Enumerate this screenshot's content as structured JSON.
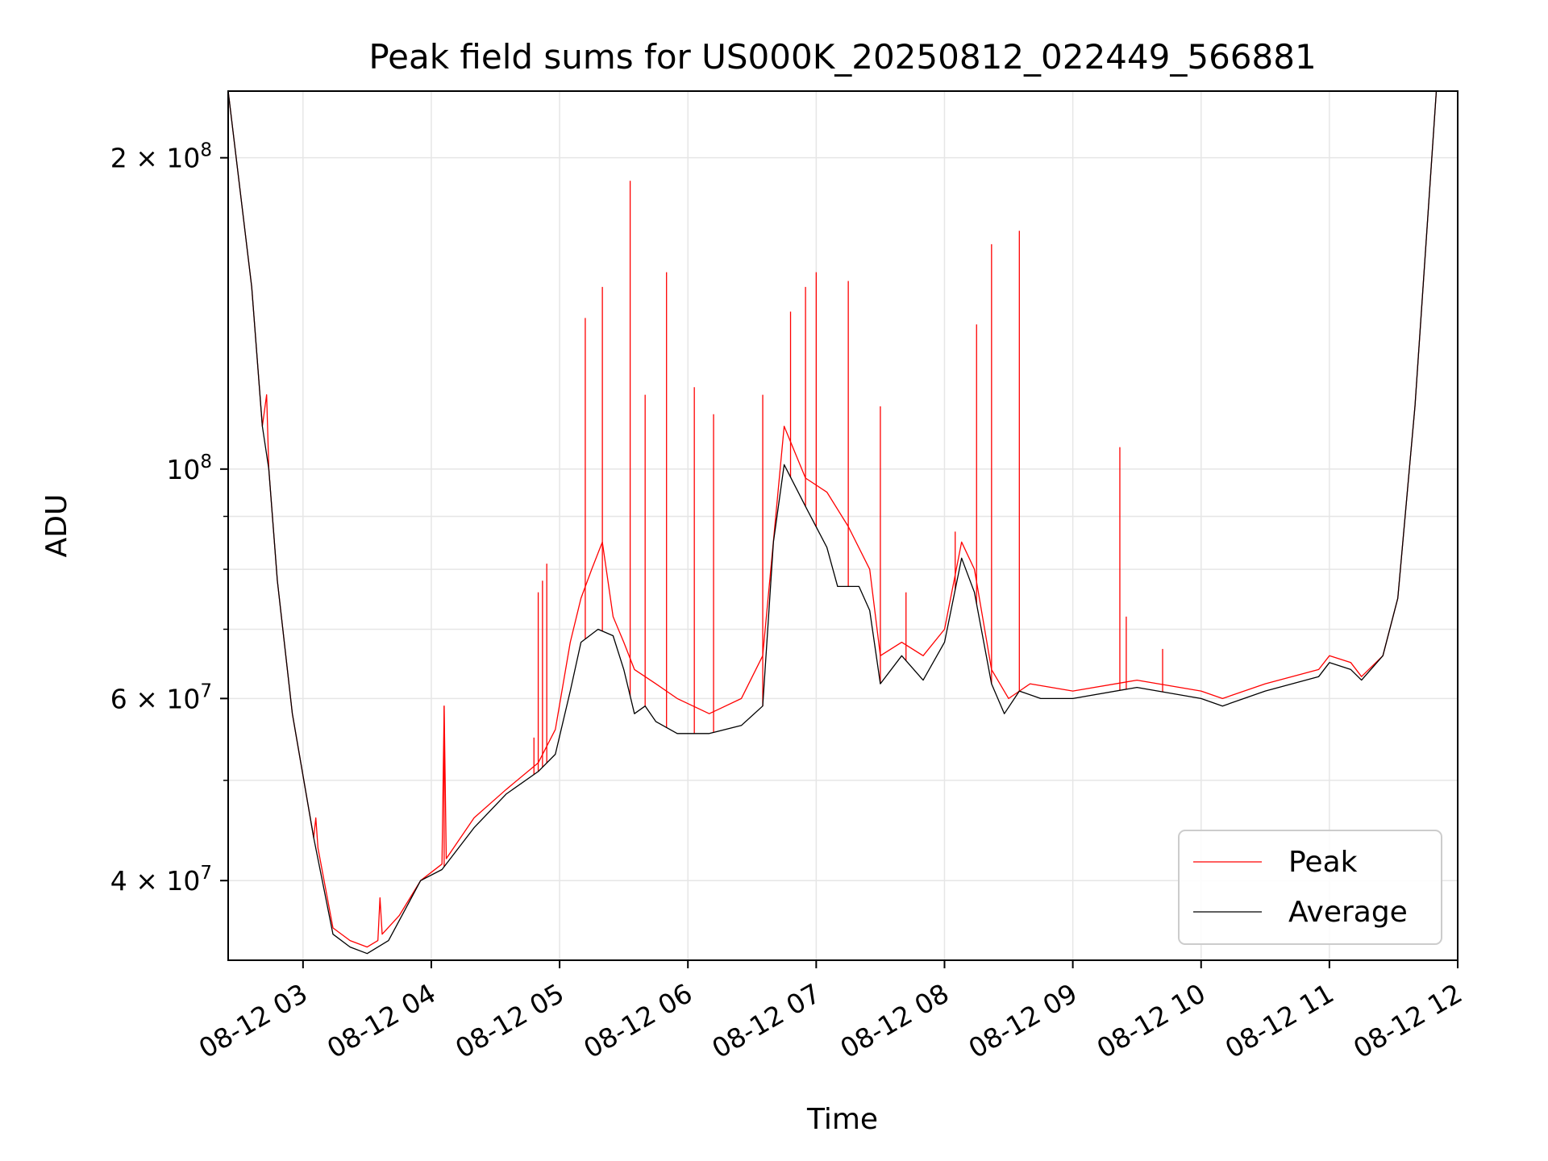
{
  "chart_data": {
    "type": "line",
    "title": "Peak field sums for US000K_20250812_022449_566881",
    "xlabel": "Time",
    "ylabel": "ADU",
    "yscale": "log",
    "ylim": [
      33500000,
      232000000
    ],
    "xlim": [
      "2025-08-12 02:25",
      "2025-08-12 12:00"
    ],
    "grid": true,
    "legend_position": "lower-right",
    "x_ticks": [
      {
        "value": "2025-08-12 03:00",
        "label": "08-12 03"
      },
      {
        "value": "2025-08-12 04:00",
        "label": "08-12 04"
      },
      {
        "value": "2025-08-12 05:00",
        "label": "08-12 05"
      },
      {
        "value": "2025-08-12 06:00",
        "label": "08-12 06"
      },
      {
        "value": "2025-08-12 07:00",
        "label": "08-12 07"
      },
      {
        "value": "2025-08-12 08:00",
        "label": "08-12 08"
      },
      {
        "value": "2025-08-12 09:00",
        "label": "08-12 09"
      },
      {
        "value": "2025-08-12 10:00",
        "label": "08-12 10"
      },
      {
        "value": "2025-08-12 11:00",
        "label": "08-12 11"
      },
      {
        "value": "2025-08-12 12:00",
        "label": "08-12 12"
      }
    ],
    "y_major_ticks": [
      {
        "value": 40000000,
        "mantissa": "4",
        "exponent": "7"
      },
      {
        "value": 60000000,
        "mantissa": "6",
        "exponent": "7"
      },
      {
        "value": 100000000,
        "mantissa": "",
        "exponent": "8"
      },
      {
        "value": 200000000,
        "mantissa": "2",
        "exponent": "8"
      }
    ],
    "y_minor_ticks": [
      50000000,
      70000000,
      80000000,
      90000000
    ],
    "series": [
      {
        "name": "Peak",
        "color": "#ff0000",
        "line_width": 1.3,
        "points": [
          [
            "2025-08-12 02:25",
            232000000
          ],
          [
            "2025-08-12 02:36",
            150000000
          ],
          [
            "2025-08-12 02:41",
            110000000
          ],
          [
            "2025-08-12 02:43",
            118000000
          ],
          [
            "2025-08-12 02:44",
            100000000
          ],
          [
            "2025-08-12 02:48",
            78000000
          ],
          [
            "2025-08-12 02:55",
            58000000
          ],
          [
            "2025-08-12 03:05",
            44000000
          ],
          [
            "2025-08-12 03:06",
            46000000
          ],
          [
            "2025-08-12 03:07",
            43000000
          ],
          [
            "2025-08-12 03:14",
            36000000
          ],
          [
            "2025-08-12 03:22",
            35000000
          ],
          [
            "2025-08-12 03:30",
            34500000
          ],
          [
            "2025-08-12 03:35",
            35000000
          ],
          [
            "2025-08-12 03:36",
            38500000
          ],
          [
            "2025-08-12 03:37",
            35500000
          ],
          [
            "2025-08-12 03:45",
            37000000
          ],
          [
            "2025-08-12 03:55",
            40000000
          ],
          [
            "2025-08-12 04:05",
            41500000
          ],
          [
            "2025-08-12 04:06",
            59000000
          ],
          [
            "2025-08-12 04:07",
            42000000
          ],
          [
            "2025-08-12 04:20",
            46000000
          ],
          [
            "2025-08-12 04:35",
            49000000
          ],
          [
            "2025-08-12 04:50",
            52000000
          ],
          [
            "2025-08-12 04:58",
            56000000
          ],
          [
            "2025-08-12 05:05",
            68000000
          ],
          [
            "2025-08-12 05:10",
            75000000
          ],
          [
            "2025-08-12 05:15",
            80000000
          ],
          [
            "2025-08-12 05:20",
            85000000
          ],
          [
            "2025-08-12 05:25",
            72000000
          ],
          [
            "2025-08-12 05:30",
            68000000
          ],
          [
            "2025-08-12 05:35",
            64000000
          ],
          [
            "2025-08-12 05:45",
            62000000
          ],
          [
            "2025-08-12 05:55",
            60000000
          ],
          [
            "2025-08-12 06:10",
            58000000
          ],
          [
            "2025-08-12 06:25",
            60000000
          ],
          [
            "2025-08-12 06:35",
            66000000
          ],
          [
            "2025-08-12 06:45",
            110000000
          ],
          [
            "2025-08-12 06:55",
            98000000
          ],
          [
            "2025-08-12 07:05",
            95000000
          ],
          [
            "2025-08-12 07:15",
            88000000
          ],
          [
            "2025-08-12 07:25",
            80000000
          ],
          [
            "2025-08-12 07:30",
            66000000
          ],
          [
            "2025-08-12 07:40",
            68000000
          ],
          [
            "2025-08-12 07:50",
            66000000
          ],
          [
            "2025-08-12 08:00",
            70000000
          ],
          [
            "2025-08-12 08:08",
            85000000
          ],
          [
            "2025-08-12 08:14",
            80000000
          ],
          [
            "2025-08-12 08:22",
            64000000
          ],
          [
            "2025-08-12 08:30",
            60000000
          ],
          [
            "2025-08-12 08:40",
            62000000
          ],
          [
            "2025-08-12 09:00",
            61000000
          ],
          [
            "2025-08-12 09:30",
            62500000
          ],
          [
            "2025-08-12 10:00",
            61000000
          ],
          [
            "2025-08-12 10:10",
            60000000
          ],
          [
            "2025-08-12 10:30",
            62000000
          ],
          [
            "2025-08-12 10:55",
            64000000
          ],
          [
            "2025-08-12 11:00",
            66000000
          ],
          [
            "2025-08-12 11:10",
            65000000
          ],
          [
            "2025-08-12 11:15",
            63000000
          ],
          [
            "2025-08-12 11:25",
            66000000
          ],
          [
            "2025-08-12 11:32",
            75000000
          ],
          [
            "2025-08-12 11:40",
            115000000
          ],
          [
            "2025-08-12 11:50",
            232000000
          ]
        ],
        "spikes": [
          [
            "2025-08-12 04:06",
            59000000
          ],
          [
            "2025-08-12 04:48",
            55000000
          ],
          [
            "2025-08-12 04:50",
            76000000
          ],
          [
            "2025-08-12 04:52",
            78000000
          ],
          [
            "2025-08-12 04:54",
            81000000
          ],
          [
            "2025-08-12 05:12",
            140000000
          ],
          [
            "2025-08-12 05:20",
            150000000
          ],
          [
            "2025-08-12 05:33",
            190000000
          ],
          [
            "2025-08-12 05:40",
            118000000
          ],
          [
            "2025-08-12 05:50",
            155000000
          ],
          [
            "2025-08-12 06:03",
            120000000
          ],
          [
            "2025-08-12 06:12",
            113000000
          ],
          [
            "2025-08-12 06:35",
            118000000
          ],
          [
            "2025-08-12 06:48",
            142000000
          ],
          [
            "2025-08-12 06:55",
            150000000
          ],
          [
            "2025-08-12 07:00",
            155000000
          ],
          [
            "2025-08-12 07:15",
            152000000
          ],
          [
            "2025-08-12 07:30",
            115000000
          ],
          [
            "2025-08-12 07:42",
            76000000
          ],
          [
            "2025-08-12 08:05",
            87000000
          ],
          [
            "2025-08-12 08:15",
            138000000
          ],
          [
            "2025-08-12 08:22",
            165000000
          ],
          [
            "2025-08-12 08:35",
            170000000
          ],
          [
            "2025-08-12 09:22",
            105000000
          ],
          [
            "2025-08-12 09:25",
            72000000
          ],
          [
            "2025-08-12 09:42",
            67000000
          ]
        ]
      },
      {
        "name": "Average",
        "color": "#000000",
        "line_width": 1.3,
        "points": [
          [
            "2025-08-12 02:25",
            232000000
          ],
          [
            "2025-08-12 02:36",
            150000000
          ],
          [
            "2025-08-12 02:41",
            110000000
          ],
          [
            "2025-08-12 02:44",
            100000000
          ],
          [
            "2025-08-12 02:48",
            78000000
          ],
          [
            "2025-08-12 02:55",
            58000000
          ],
          [
            "2025-08-12 03:05",
            44000000
          ],
          [
            "2025-08-12 03:14",
            35500000
          ],
          [
            "2025-08-12 03:22",
            34500000
          ],
          [
            "2025-08-12 03:30",
            34000000
          ],
          [
            "2025-08-12 03:40",
            35000000
          ],
          [
            "2025-08-12 03:55",
            40000000
          ],
          [
            "2025-08-12 04:05",
            41000000
          ],
          [
            "2025-08-12 04:20",
            45000000
          ],
          [
            "2025-08-12 04:35",
            48500000
          ],
          [
            "2025-08-12 04:50",
            51000000
          ],
          [
            "2025-08-12 04:58",
            53000000
          ],
          [
            "2025-08-12 05:05",
            61000000
          ],
          [
            "2025-08-12 05:10",
            68000000
          ],
          [
            "2025-08-12 05:18",
            70000000
          ],
          [
            "2025-08-12 05:25",
            69000000
          ],
          [
            "2025-08-12 05:30",
            64000000
          ],
          [
            "2025-08-12 05:35",
            58000000
          ],
          [
            "2025-08-12 05:40",
            59000000
          ],
          [
            "2025-08-12 05:45",
            57000000
          ],
          [
            "2025-08-12 05:55",
            55500000
          ],
          [
            "2025-08-12 06:10",
            55500000
          ],
          [
            "2025-08-12 06:25",
            56500000
          ],
          [
            "2025-08-12 06:35",
            59000000
          ],
          [
            "2025-08-12 06:40",
            85000000
          ],
          [
            "2025-08-12 06:45",
            101000000
          ],
          [
            "2025-08-12 06:55",
            92000000
          ],
          [
            "2025-08-12 07:05",
            84000000
          ],
          [
            "2025-08-12 07:10",
            77000000
          ],
          [
            "2025-08-12 07:20",
            77000000
          ],
          [
            "2025-08-12 07:25",
            73000000
          ],
          [
            "2025-08-12 07:30",
            62000000
          ],
          [
            "2025-08-12 07:40",
            66000000
          ],
          [
            "2025-08-12 07:50",
            62500000
          ],
          [
            "2025-08-12 08:00",
            68000000
          ],
          [
            "2025-08-12 08:08",
            82000000
          ],
          [
            "2025-08-12 08:14",
            76000000
          ],
          [
            "2025-08-12 08:22",
            62000000
          ],
          [
            "2025-08-12 08:28",
            58000000
          ],
          [
            "2025-08-12 08:35",
            61000000
          ],
          [
            "2025-08-12 08:45",
            60000000
          ],
          [
            "2025-08-12 09:00",
            60000000
          ],
          [
            "2025-08-12 09:30",
            61500000
          ],
          [
            "2025-08-12 10:00",
            60000000
          ],
          [
            "2025-08-12 10:10",
            59000000
          ],
          [
            "2025-08-12 10:30",
            61000000
          ],
          [
            "2025-08-12 10:55",
            63000000
          ],
          [
            "2025-08-12 11:00",
            65000000
          ],
          [
            "2025-08-12 11:10",
            64000000
          ],
          [
            "2025-08-12 11:15",
            62500000
          ],
          [
            "2025-08-12 11:25",
            66000000
          ],
          [
            "2025-08-12 11:32",
            75000000
          ],
          [
            "2025-08-12 11:40",
            115000000
          ],
          [
            "2025-08-12 11:50",
            232000000
          ]
        ]
      }
    ]
  }
}
